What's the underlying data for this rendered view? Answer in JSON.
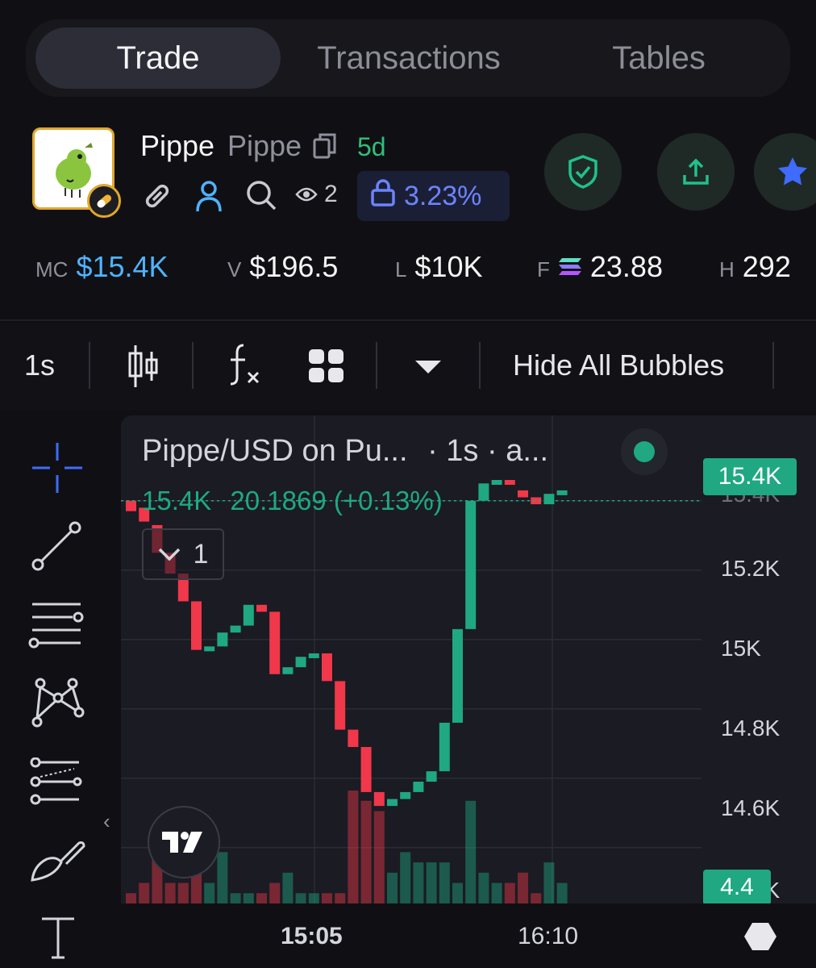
{
  "tabs": [
    {
      "label": "Trade",
      "active": true
    },
    {
      "label": "Transactions",
      "active": false
    },
    {
      "label": "Tables",
      "active": false
    }
  ],
  "token": {
    "name": "Pippe",
    "symbol": "Pippe",
    "age": "5d",
    "holders_count": "2",
    "lock_percent": "3.23%"
  },
  "stats": {
    "mc_label": "MC",
    "mc_value": "$15.4K",
    "v_label": "V",
    "v_value": "$196.5",
    "l_label": "L",
    "l_value": "$10K",
    "f_label": "F",
    "f_value": "23.88",
    "h_label": "H",
    "h_value": "292"
  },
  "toolbar": {
    "interval": "1s",
    "hide_bubbles": "Hide All Bubbles"
  },
  "chart": {
    "title": "Pippe/USD on Pu...",
    "title_suffix": "· 1s · a...",
    "legend_value": "15.4K",
    "legend_change": "20.1869 (+0.13%)",
    "indicator_count": "1",
    "price_tag": "15.4K",
    "volume_tag": "4.4",
    "y_ticks": [
      "15.4K",
      "15.2K",
      "15K",
      "14.8K",
      "14.6K",
      "14.4K"
    ],
    "x_ticks": [
      "15:05",
      "16:10"
    ],
    "colors": {
      "up": "#1fa882",
      "down": "#f0384a",
      "accent": "#1fa882",
      "lock": "#6d83ff",
      "mc": "#4fb3ff"
    }
  },
  "chart_data": {
    "type": "candlestick",
    "title": "Pippe/USD on Pu...",
    "y_ticks": [
      15400,
      15200,
      15000,
      14800,
      14600,
      14400
    ],
    "ylim": [
      14390,
      15460
    ],
    "x_ticks": [
      "15:05",
      "16:10"
    ],
    "candles": [
      {
        "o": 15400,
        "c": 15370,
        "h": 15400,
        "l": 15370
      },
      {
        "o": 15380,
        "c": 15340,
        "h": 15380,
        "l": 15340
      },
      {
        "o": 15330,
        "c": 15250,
        "h": 15330,
        "l": 15250
      },
      {
        "o": 15250,
        "c": 15190,
        "h": 15250,
        "l": 15190
      },
      {
        "o": 15190,
        "c": 15110,
        "h": 15190,
        "l": 15110
      },
      {
        "o": 15110,
        "c": 14970,
        "h": 15110,
        "l": 14970
      },
      {
        "o": 14970,
        "c": 14980,
        "h": 14980,
        "l": 14970
      },
      {
        "o": 14980,
        "c": 15020,
        "h": 15020,
        "l": 14980
      },
      {
        "o": 15020,
        "c": 15040,
        "h": 15040,
        "l": 15020
      },
      {
        "o": 15040,
        "c": 15100,
        "h": 15100,
        "l": 15040
      },
      {
        "o": 15100,
        "c": 15080,
        "h": 15100,
        "l": 15080
      },
      {
        "o": 15080,
        "c": 14900,
        "h": 15080,
        "l": 14900
      },
      {
        "o": 14900,
        "c": 14920,
        "h": 14920,
        "l": 14900
      },
      {
        "o": 14920,
        "c": 14950,
        "h": 14950,
        "l": 14920
      },
      {
        "o": 14950,
        "c": 14960,
        "h": 14960,
        "l": 14950
      },
      {
        "o": 14960,
        "c": 14880,
        "h": 14960,
        "l": 14880
      },
      {
        "o": 14880,
        "c": 14740,
        "h": 14880,
        "l": 14740
      },
      {
        "o": 14740,
        "c": 14690,
        "h": 14740,
        "l": 14690
      },
      {
        "o": 14690,
        "c": 14560,
        "h": 14690,
        "l": 14560
      },
      {
        "o": 14560,
        "c": 14520,
        "h": 14560,
        "l": 14520
      },
      {
        "o": 14520,
        "c": 14540,
        "h": 14540,
        "l": 14520
      },
      {
        "o": 14540,
        "c": 14560,
        "h": 14560,
        "l": 14540
      },
      {
        "o": 14560,
        "c": 14590,
        "h": 14590,
        "l": 14560
      },
      {
        "o": 14590,
        "c": 14620,
        "h": 14620,
        "l": 14590
      },
      {
        "o": 14620,
        "c": 14760,
        "h": 14760,
        "l": 14620
      },
      {
        "o": 14760,
        "c": 15030,
        "h": 15030,
        "l": 14760
      },
      {
        "o": 15030,
        "c": 15400,
        "h": 15400,
        "l": 15030
      },
      {
        "o": 15400,
        "c": 15450,
        "h": 15450,
        "l": 15400
      },
      {
        "o": 15450,
        "c": 15460,
        "h": 15460,
        "l": 15450
      },
      {
        "o": 15460,
        "c": 15450,
        "h": 15460,
        "l": 15450
      },
      {
        "o": 15430,
        "c": 15410,
        "h": 15430,
        "l": 15410
      },
      {
        "o": 15410,
        "c": 15390,
        "h": 15410,
        "l": 15390
      },
      {
        "o": 15390,
        "c": 15420,
        "h": 15420,
        "l": 15390
      },
      {
        "o": 15420,
        "c": 15430,
        "h": 15430,
        "l": 15420
      }
    ],
    "volumes": [
      1,
      2,
      5,
      2,
      2,
      3,
      2,
      5,
      1,
      1,
      1,
      2,
      3,
      1,
      1,
      1,
      1,
      11,
      10,
      9,
      3,
      5,
      4,
      4,
      4,
      2,
      10,
      3,
      2,
      2,
      3,
      1,
      4,
      2
    ],
    "price_tag": 15400,
    "volume_tag": 4.4
  }
}
